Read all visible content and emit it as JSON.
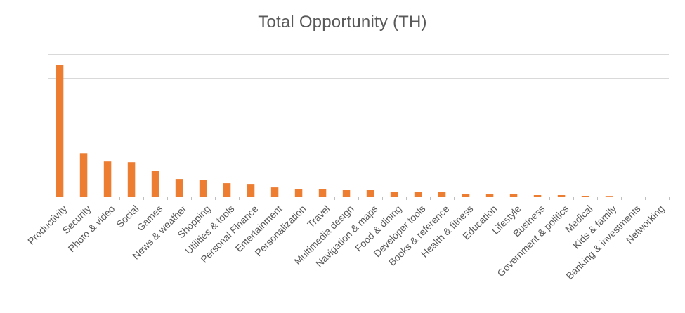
{
  "chart_data": {
    "type": "bar",
    "title": "Total Opportunity (TH)",
    "xlabel": "",
    "ylabel": "",
    "ylim": [
      0,
      100
    ],
    "y_gridlines": [
      0,
      17,
      34,
      51,
      68,
      85,
      102
    ],
    "y_tick_labels_shown": false,
    "grid": true,
    "legend": "none",
    "bar_color": "#ED7D31",
    "categories": [
      "Productivity",
      "Security",
      "Photo & video",
      "Social",
      "Games",
      "News & weather",
      "Shopping",
      "Utilities & tools",
      "Personal Finance",
      "Entertainment",
      "Personalization",
      "Travel",
      "Multimedia design",
      "Navigation & maps",
      "Food & dining",
      "Developer tools",
      "Books & reference",
      "Health & fitness",
      "Education",
      "Lifestyle",
      "Business",
      "Government & politics",
      "Medical",
      "Kids & family",
      "Banking & investments",
      "Networking"
    ],
    "values": [
      94,
      31,
      25,
      24.5,
      18.5,
      12.5,
      12,
      9.5,
      9,
      6.5,
      5.5,
      5,
      4.5,
      4.5,
      3.5,
      3,
      3,
      2,
      2,
      1.5,
      1,
      1,
      0.5,
      0.4,
      0,
      0
    ]
  }
}
